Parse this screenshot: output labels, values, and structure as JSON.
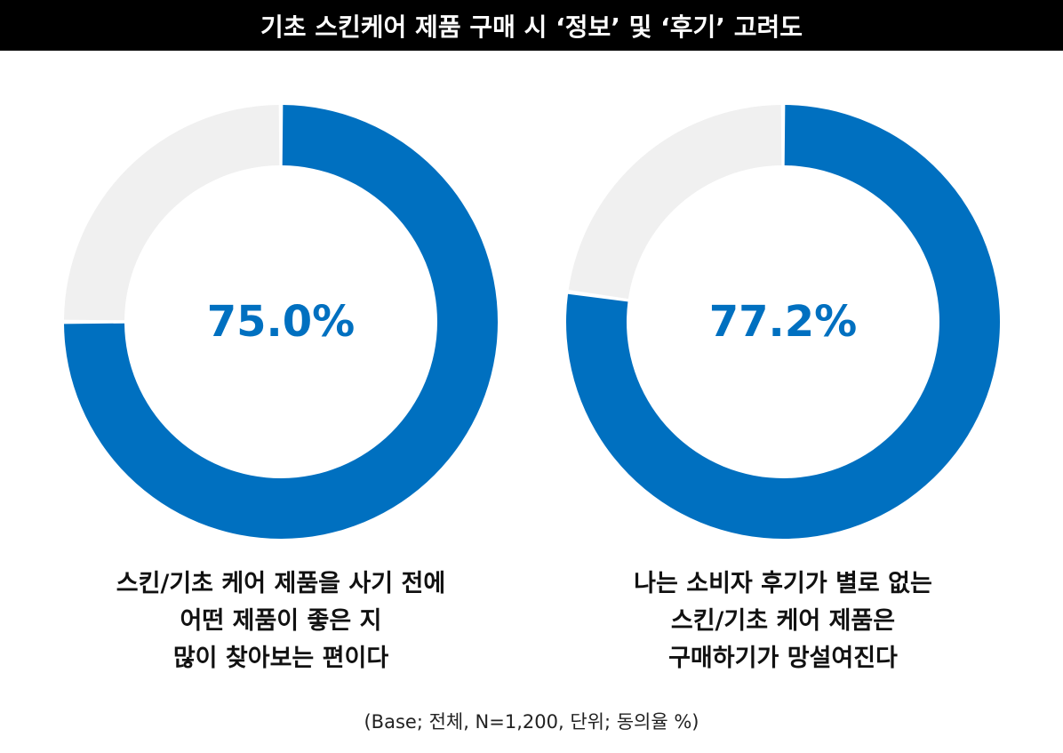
{
  "title": "기초 스킨케어 제품 구매 시 ‘정보’ 및 ‘후기’ 고려도",
  "colors": {
    "value": "#0070c0",
    "remainder": "#f0f0f0",
    "title_bg": "#000000"
  },
  "chart_data": [
    {
      "type": "pie",
      "style": "donut",
      "value": 75.0,
      "value_label": "75.0%",
      "caption_lines": [
        "스킨/기초 케어 제품을 사기 전에",
        "어떤 제품이 좋은 지",
        "많이 찾아보는 편이다"
      ]
    },
    {
      "type": "pie",
      "style": "donut",
      "value": 77.2,
      "value_label": "77.2%",
      "caption_lines": [
        "나는 소비자 후기가 별로 없는",
        "스킨/기초 케어 제품은",
        "구매하기가 망설여진다"
      ]
    }
  ],
  "base_note": "(Base; 전체, N=1,200, 단위; 동의율 %)"
}
